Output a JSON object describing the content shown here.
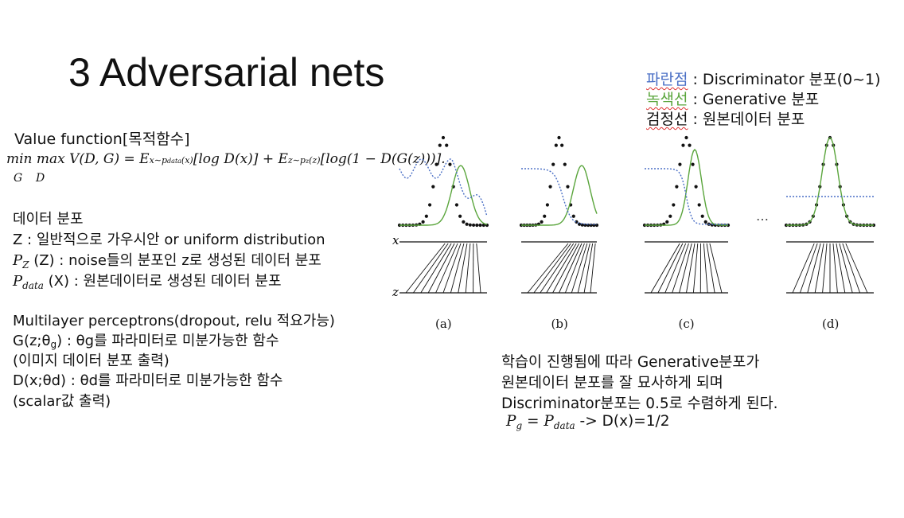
{
  "slide": {
    "title": "3 Adversarial nets"
  },
  "legend": [
    {
      "key": "파란점",
      "text": " : Discriminator 분포(0~1)",
      "color": "#4a6fc5"
    },
    {
      "key": "녹색선",
      "text": " : Generative 분포",
      "color": "#5aa53c"
    },
    {
      "key": "검정선",
      "text": " : 원본데이터 분포",
      "color": "#111111"
    }
  ],
  "value_function": {
    "label": "Value function[목적함수]",
    "formula_main": "min max V(D, G) = E",
    "formula_sub1": "x∼p",
    "formula_sub1b": "data",
    "formula_sub1c": "(x)",
    "formula_mid": "[log D(x)] + E",
    "formula_sub2": "z∼p",
    "formula_sub2b": "z",
    "formula_sub2c": "(z)",
    "formula_end": "[log(1 − D(G(z)))].",
    "under_min": "G",
    "under_max": "D"
  },
  "data_dist": {
    "heading": "데이터 분포",
    "line_z": "Z : 일반적으로 가우시안 or uniform distribution",
    "pz_symbol": "P",
    "pz_sub": "Z",
    "pz_text": " (Z) : noise들의 분포인 z로 생성된 데이터 분포",
    "pdata_symbol": "P",
    "pdata_sub": "data",
    "pdata_text": " (X) : 원본데이터로 생성된 데이터 분포"
  },
  "mlp": {
    "line1": "Multilayer perceptrons(dropout, relu 적요가능)",
    "line2": "G(z;θ",
    "line2_sub": "g",
    "line2_rest": ") : θg를 파라미터로 미분가능한 함수",
    "line3": "(이미지 데이터 분포 출력)",
    "line4": "D(x;θd) : θd를 파라미터로 미분가능한 함수",
    "line5": "(scalar값 출력)"
  },
  "figure": {
    "labels": [
      "(a)",
      "(b)",
      "(c)",
      "(d)"
    ],
    "axis_x": "x",
    "axis_z": "z",
    "ellipsis": "…"
  },
  "conclusion": {
    "line1": "학습이 진행됨에 따라 Generative분포가",
    "line2": "원본데이터 분포를 잘 묘사하게 되며",
    "line3": "Discriminator분포는 0.5로 수렴하게 된다.",
    "eq_pg": "P",
    "eq_pg_sub": "g",
    "eq_mid": " = ",
    "eq_pdata": "P",
    "eq_pdata_sub": "data",
    "eq_rest": " -> D(x)=1/2"
  },
  "colors": {
    "blue": "#4a6fc5",
    "green": "#5aa53c",
    "squiggle": "#d33333"
  }
}
